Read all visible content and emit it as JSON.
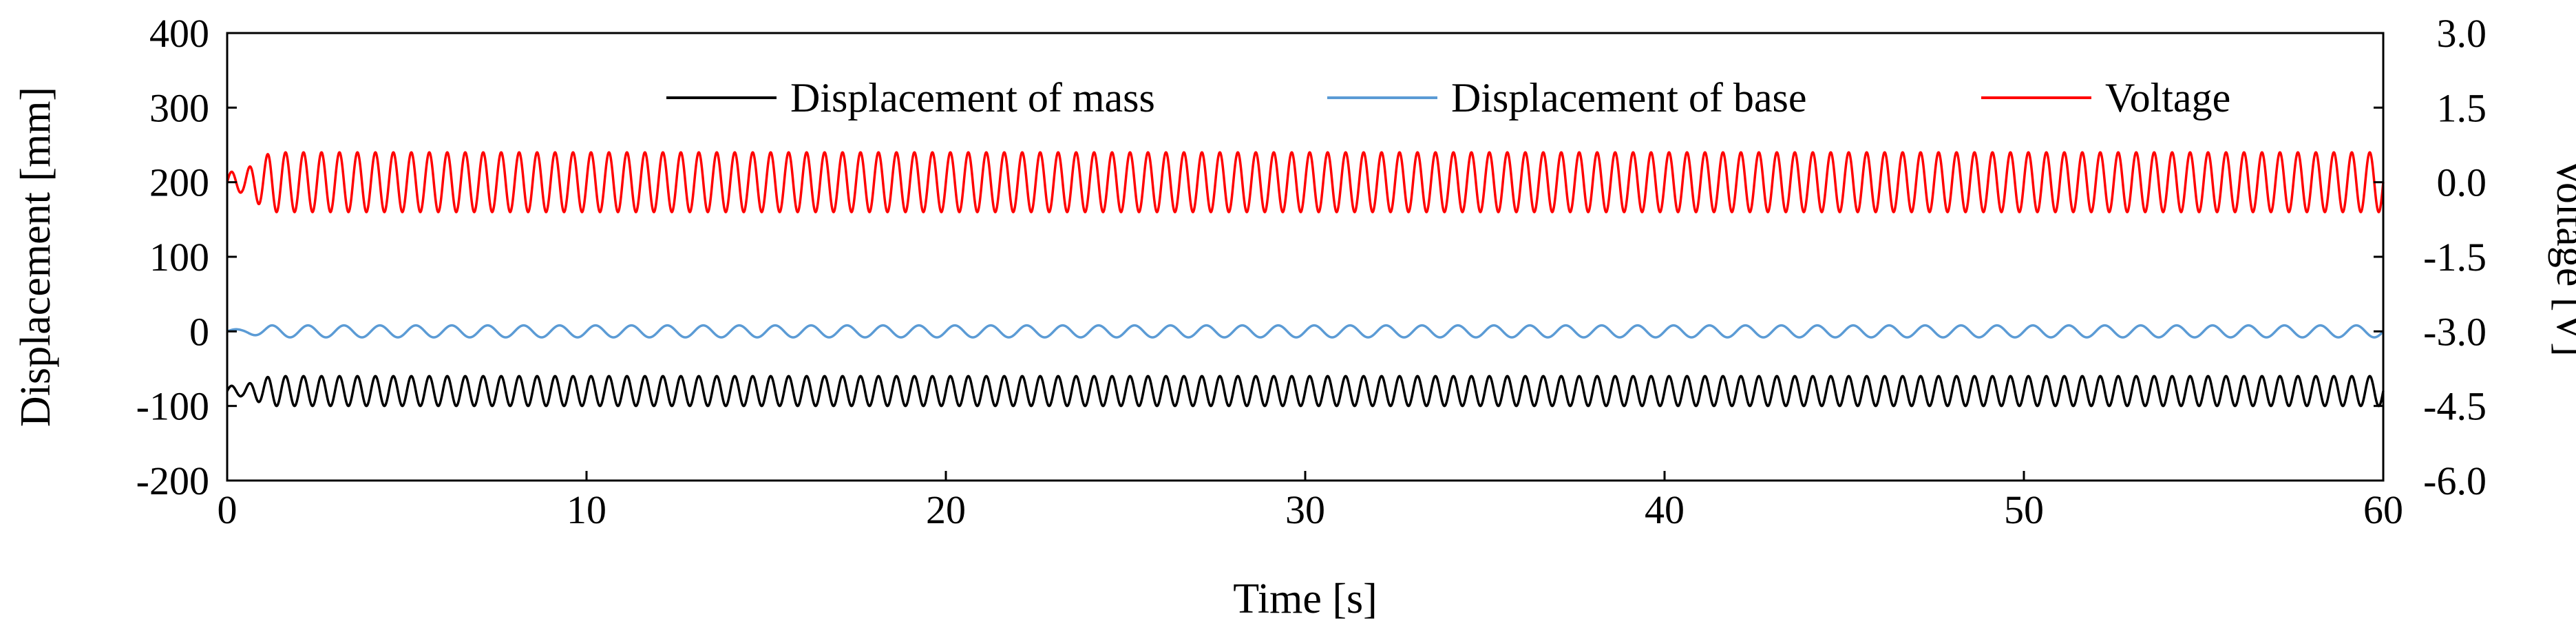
{
  "chart_data": {
    "type": "line",
    "title": "",
    "xlabel": "Time [s]",
    "ylabel_left": "Displacement [mm]",
    "ylabel_right": "Voltage [V]",
    "xlim": [
      0,
      60
    ],
    "ylim_left": [
      -200,
      400
    ],
    "ylim_right": [
      -6.0,
      3.0
    ],
    "x_ticks": [
      "0",
      "10",
      "20",
      "30",
      "40",
      "50",
      "60"
    ],
    "y_left_ticks": [
      "400",
      "300",
      "200",
      "100",
      "0",
      "-100",
      "-200"
    ],
    "y_right_ticks": [
      "3.0",
      "1.5",
      "0.0",
      "-1.5",
      "-3.0",
      "-4.5",
      "-6.0"
    ],
    "grid": false,
    "legend_position": "top",
    "series": [
      {
        "name": "Displacement of mass",
        "axis": "left",
        "color": "#000000",
        "offset": -80,
        "amplitude": 20,
        "frequency_hz": 2.0,
        "samples": [
          [
            0.0,
            -95
          ],
          [
            0.3,
            -85
          ],
          [
            0.6,
            -80
          ],
          [
            0.9,
            -100
          ],
          [
            1.0,
            -80
          ],
          [
            5.0,
            -60
          ],
          [
            5.25,
            -100
          ],
          [
            30.0,
            -60
          ],
          [
            30.25,
            -100
          ],
          [
            59.75,
            -100
          ],
          [
            60.0,
            -65
          ]
        ]
      },
      {
        "name": "Displacement of base",
        "axis": "left",
        "color": "#5B9BD5",
        "offset": 0,
        "amplitude": 8,
        "frequency_hz": 1.0,
        "samples": [
          [
            0.0,
            0
          ],
          [
            0.25,
            8
          ],
          [
            0.5,
            0
          ],
          [
            0.75,
            -8
          ],
          [
            1.0,
            0
          ],
          [
            30.0,
            0
          ],
          [
            30.25,
            8
          ],
          [
            30.75,
            -8
          ],
          [
            60.0,
            0
          ]
        ]
      },
      {
        "name": "Voltage",
        "axis": "right",
        "color": "#FF0000",
        "offset": 0.0,
        "amplitude": 0.6,
        "frequency_hz": 2.0,
        "samples": [
          [
            0.0,
            0.1
          ],
          [
            0.4,
            0.05
          ],
          [
            0.6,
            -0.1
          ],
          [
            1.0,
            0.2
          ],
          [
            5.0,
            0.6
          ],
          [
            5.25,
            -0.6
          ],
          [
            30.0,
            0.6
          ],
          [
            30.25,
            -0.6
          ],
          [
            59.75,
            -0.6
          ],
          [
            60.0,
            0.3
          ]
        ]
      }
    ]
  }
}
